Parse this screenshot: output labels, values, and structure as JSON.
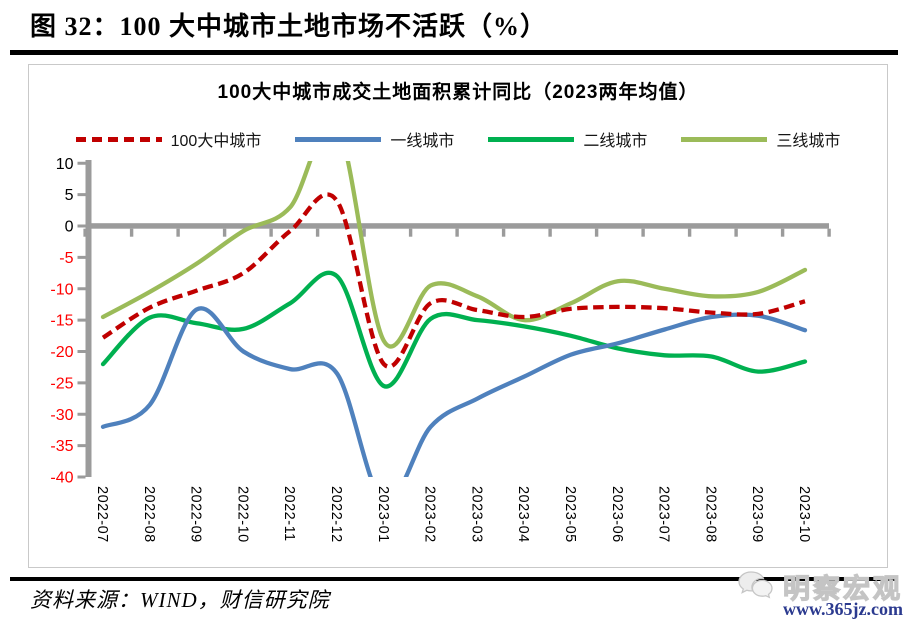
{
  "document": {
    "title": "图 32：100 大中城市土地市场不活跃（%）",
    "source": "资料来源：WIND，财信研究院"
  },
  "watermark": {
    "brand": "明察宏观",
    "url": "www.365jz.com",
    "icon": "wechat-chat-bubbles-icon"
  },
  "chart": {
    "title": "100大中城市成交土地面积累计同比（2023两年均值）",
    "legend": [
      {
        "label": "100大中城市",
        "color": "#C00000",
        "style": "dashed"
      },
      {
        "label": "一线城市",
        "color": "#4F81BD",
        "style": "solid"
      },
      {
        "label": "二线城市",
        "color": "#00B050",
        "style": "solid"
      },
      {
        "label": "三线城市",
        "color": "#9BBB59",
        "style": "solid"
      }
    ]
  },
  "chart_data": {
    "type": "line",
    "title": "100大中城市成交土地面积累计同比（2023两年均值）",
    "categories": [
      "2022-07",
      "2022-08",
      "2022-09",
      "2022-10",
      "2022-11",
      "2022-12",
      "2023-01",
      "2023-02",
      "2023-03",
      "2023-04",
      "2023-05",
      "2023-06",
      "2023-07",
      "2023-08",
      "2023-09",
      "2023-10"
    ],
    "series": [
      {
        "name": "100大中城市",
        "color": "#C00000",
        "dashed": true,
        "values": [
          -17.8,
          -13,
          -10.3,
          -7.5,
          -0.8,
          4,
          -22,
          -12.3,
          -13.4,
          -14.5,
          -13.2,
          -12.9,
          -13.1,
          -13.8,
          -14,
          -12
        ]
      },
      {
        "name": "一线城市",
        "color": "#4F81BD",
        "dashed": false,
        "values": [
          -32,
          -28.5,
          -13.3,
          -20,
          -22.8,
          -23.5,
          -44,
          -32,
          -27.5,
          -24,
          -20.5,
          -18.7,
          -16.5,
          -14.5,
          -14.3,
          -16.6
        ]
      },
      {
        "name": "二线城市",
        "color": "#00B050",
        "dashed": false,
        "values": [
          -22,
          -14.6,
          -15.5,
          -16.4,
          -12.3,
          -8,
          -25.5,
          -14.8,
          -15,
          -16,
          -17.5,
          -19.5,
          -20.6,
          -20.8,
          -23.2,
          -21.6
        ]
      },
      {
        "name": "三线城市",
        "color": "#9BBB59",
        "dashed": false,
        "values": [
          -14.5,
          -10.5,
          -6,
          -0.8,
          3,
          16,
          -18.3,
          -9.5,
          -11.2,
          -15,
          -12.3,
          -8.8,
          -10,
          -11.2,
          -10.5,
          -7
        ]
      }
    ],
    "ylim": [
      -40,
      10
    ],
    "y_ticks": [
      10,
      5,
      0,
      -5,
      -10,
      -15,
      -20,
      -25,
      -30,
      -35,
      -40
    ],
    "y_label_colors": {
      "positive": "#000000",
      "negative": "#FF0000"
    },
    "axis_color": "#9B9B9B",
    "grid": false,
    "legend_position": "top",
    "x_label_rotation": 90,
    "notes": "一线城市 2023-01 value falls below plot minimum (clipped at -40); 三线城市 2022-12 value exceeds plot maximum (clipped at +10)."
  }
}
